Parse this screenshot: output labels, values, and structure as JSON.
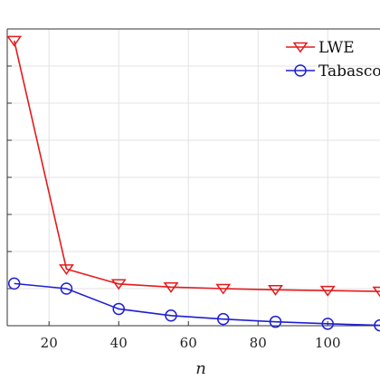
{
  "chart_data": {
    "type": "line",
    "xlabel": "n",
    "ylabel": "",
    "xlim": [
      8,
      115
    ],
    "ylim": [
      0,
      7.6
    ],
    "x_ticks": [
      20,
      40,
      60,
      80,
      100
    ],
    "y_tick_count": 8,
    "grid": true,
    "legend_position": "top-right",
    "series": [
      {
        "name": "LWE",
        "color": "#e41a1c",
        "marker": "triangle-down",
        "x": [
          10,
          25,
          40,
          55,
          70,
          85,
          100,
          115
        ],
        "y": [
          7.3,
          1.45,
          1.07,
          0.99,
          0.95,
          0.92,
          0.9,
          0.88
        ]
      },
      {
        "name": "Tabasco",
        "color": "#1f1fd1",
        "marker": "circle",
        "x": [
          10,
          25,
          40,
          55,
          70,
          85,
          100,
          115
        ],
        "y": [
          1.08,
          0.95,
          0.43,
          0.26,
          0.17,
          0.1,
          0.05,
          0.01
        ]
      }
    ]
  }
}
